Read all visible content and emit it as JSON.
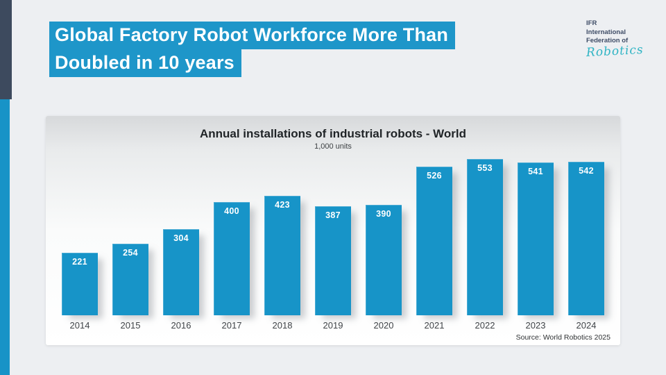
{
  "slide": {
    "title_line1": "Global Factory Robot Workforce More Than",
    "title_line2": "Doubled in 10 years"
  },
  "logo": {
    "line1": "IFR",
    "line2": "International",
    "line3": "Federation of",
    "script_word": "Robotics"
  },
  "chart_data": {
    "type": "bar",
    "title": "Annual installations of industrial robots - World",
    "subtitle": "1,000 units",
    "categories": [
      "2014",
      "2015",
      "2016",
      "2017",
      "2018",
      "2019",
      "2020",
      "2021",
      "2022",
      "2023",
      "2024"
    ],
    "values": [
      221,
      254,
      304,
      400,
      423,
      387,
      390,
      526,
      553,
      541,
      542
    ],
    "source": "Source: World Robotics 2025",
    "ylabel": "1,000 units",
    "xlabel": "",
    "ylim": [
      0,
      600
    ],
    "grid": false,
    "legend": false,
    "bar_color": "#1794c8",
    "value_label_color": "#ffffff"
  },
  "colors": {
    "accent_blue": "#1e96c9",
    "strip_dark": "#3d4a5e",
    "strip_blue": "#1793c7",
    "logo_teal": "#2fb4c4",
    "background": "#edeff2"
  }
}
